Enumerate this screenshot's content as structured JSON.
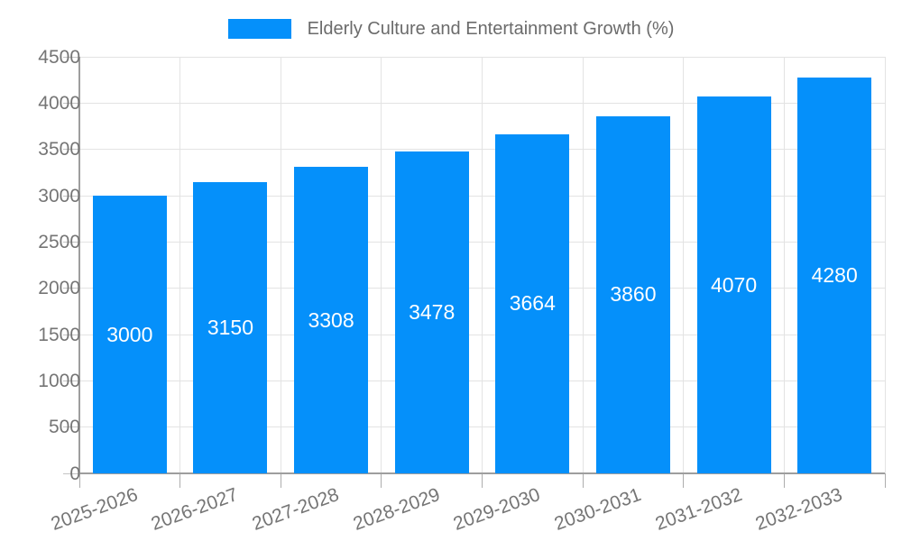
{
  "legend": {
    "label": "Elderly Culture and Entertainment Growth (%)"
  },
  "chart_data": {
    "type": "bar",
    "title": "Elderly Culture and Entertainment Growth (%)",
    "categories": [
      "2025-2026",
      "2026-2027",
      "2027-2028",
      "2028-2029",
      "2029-2030",
      "2030-2031",
      "2031-2032",
      "2032-2033"
    ],
    "values": [
      3000,
      3150,
      3308,
      3478,
      3664,
      3860,
      4070,
      4280
    ],
    "bar_labels": [
      "3000",
      "3150",
      "3308",
      "3478",
      "3664",
      "3860",
      "4070",
      "4280"
    ],
    "xlabel": "",
    "ylabel": "",
    "ylim": [
      0,
      4500
    ],
    "yticks": [
      0,
      500,
      1000,
      1500,
      2000,
      2500,
      3000,
      3500,
      4000,
      4500
    ],
    "grid": true,
    "legend_position": "top-center",
    "colors": {
      "bar": "#0590FA",
      "bar_label": "#ffffff",
      "axis_text": "#757575",
      "legend_text": "#6b6b6b",
      "gridline": "#e3e3e3",
      "axis_line": "#9e9e9e"
    }
  }
}
